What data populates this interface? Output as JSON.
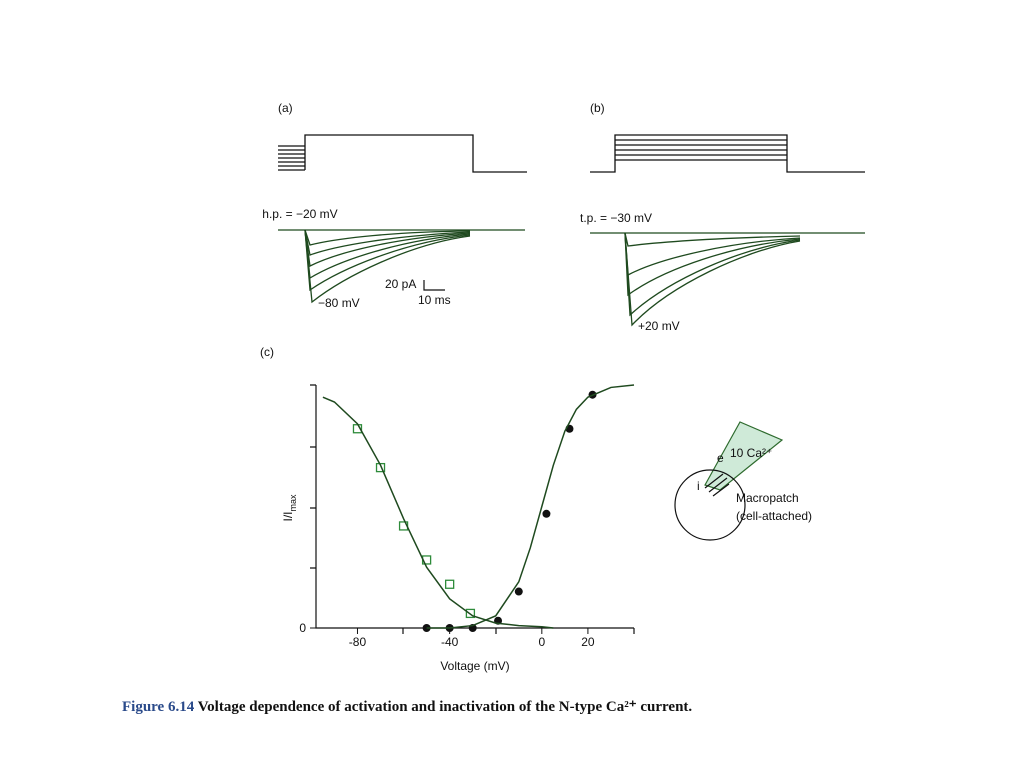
{
  "panels": {
    "a": "(a)",
    "b": "(b)",
    "c": "(c)"
  },
  "traces_a": {
    "holding": "h.p. = −20 mV",
    "step": "−80 mV",
    "scale_current": "20 pA",
    "scale_time": "10 ms"
  },
  "traces_b": {
    "test": "t.p. = −30 mV",
    "step": "+20 mV"
  },
  "inset": {
    "solution": "10 Ca²⁺",
    "outside": "e",
    "inside": "i",
    "label": "Macropatch",
    "sublabel": "(cell-attached)"
  },
  "caption": {
    "number": "Figure 6.14",
    "text": "Voltage dependence of activation and inactivation of the N-type Ca²⁺ current."
  },
  "chart_data": {
    "type": "scatter",
    "xlabel": "Voltage (mV)",
    "ylabel": "I/I",
    "ylabel_sub": "max",
    "xlim": [
      -98,
      40
    ],
    "ylim": [
      0,
      1
    ],
    "xticks": [
      -80,
      -40,
      0,
      20
    ],
    "yticks": [
      0
    ],
    "series": [
      {
        "marker": "square",
        "color": "#2e8b3a",
        "x": [
          -80,
          -70,
          -60,
          -50,
          -40,
          -31
        ],
        "values": [
          0.82,
          0.66,
          0.42,
          0.28,
          0.18,
          0.06
        ]
      },
      {
        "marker": "circle",
        "color": "#111111",
        "x": [
          -50,
          -40,
          -30,
          -19,
          -10,
          2,
          12,
          22
        ],
        "values": [
          0,
          0,
          0,
          0.03,
          0.15,
          0.47,
          0.82,
          0.96
        ]
      },
      {
        "marker": "line",
        "color": "#1f4a1f",
        "x": [
          -95,
          -90,
          -80,
          -70,
          -60,
          -50,
          -40,
          -30,
          -20,
          -10,
          0,
          5
        ],
        "values": [
          0.95,
          0.93,
          0.84,
          0.67,
          0.45,
          0.25,
          0.12,
          0.05,
          0.02,
          0.01,
          0.005,
          0
        ]
      },
      {
        "marker": "line",
        "color": "#1f4a1f",
        "x": [
          -50,
          -40,
          -30,
          -20,
          -10,
          -5,
          0,
          5,
          10,
          15,
          20,
          30,
          40
        ],
        "values": [
          0,
          0,
          0.01,
          0.05,
          0.19,
          0.33,
          0.5,
          0.67,
          0.81,
          0.9,
          0.95,
          0.99,
          1
        ]
      }
    ]
  }
}
